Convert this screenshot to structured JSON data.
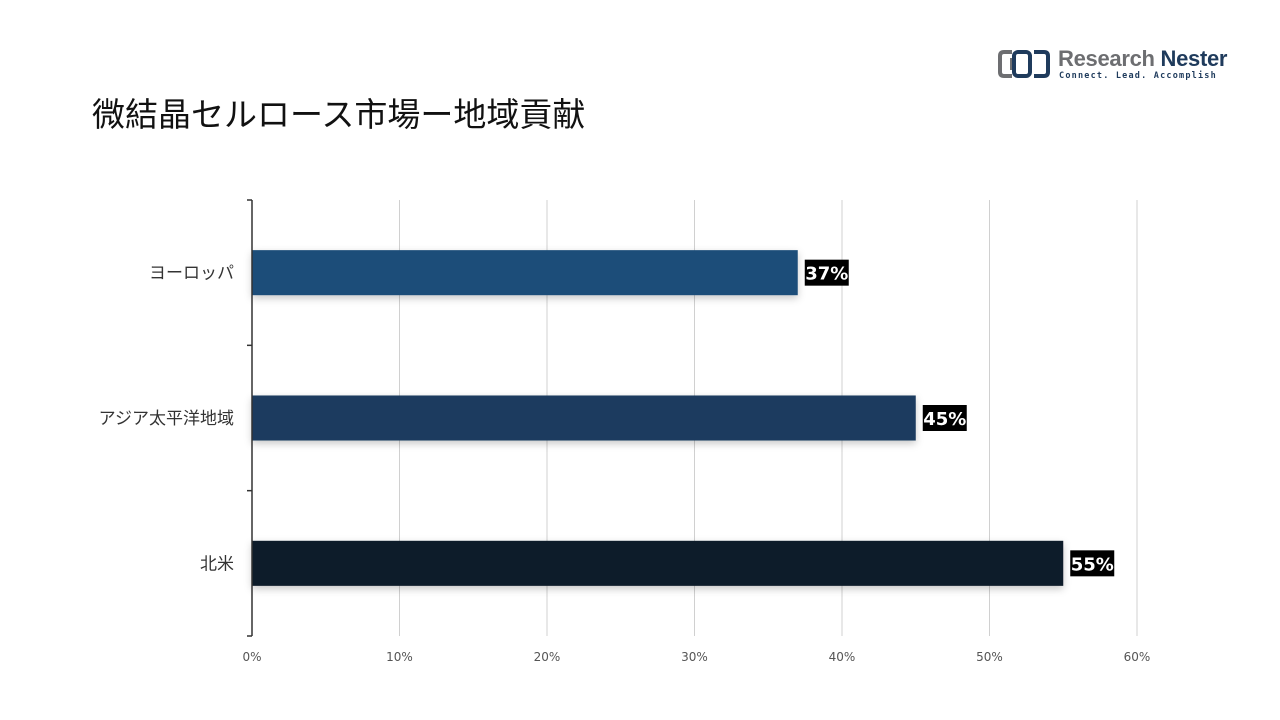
{
  "logo": {
    "name_part1": "Research",
    "name_part2": "Nester",
    "tagline": "Connect. Lead. Accomplish"
  },
  "title": "微結晶セルロース市場ー地域貢献",
  "chart_data": {
    "type": "bar",
    "orientation": "horizontal",
    "categories": [
      "ヨーロッパ",
      "アジア太平洋地域",
      "北米"
    ],
    "values": [
      37,
      45,
      55
    ],
    "value_labels": [
      "37%",
      "45%",
      "55%"
    ],
    "xlim": [
      0,
      60
    ],
    "xticks": [
      0,
      10,
      20,
      30,
      40,
      50,
      60
    ],
    "xtick_labels": [
      "0%",
      "10%",
      "20%",
      "30%",
      "40%",
      "50%",
      "60%"
    ],
    "grid": "vertical",
    "colors": [
      "#1f4e79",
      "#1a3a5e",
      "#0e1d2c"
    ],
    "label_bg": "#000000",
    "label_color": "#ffffff"
  }
}
